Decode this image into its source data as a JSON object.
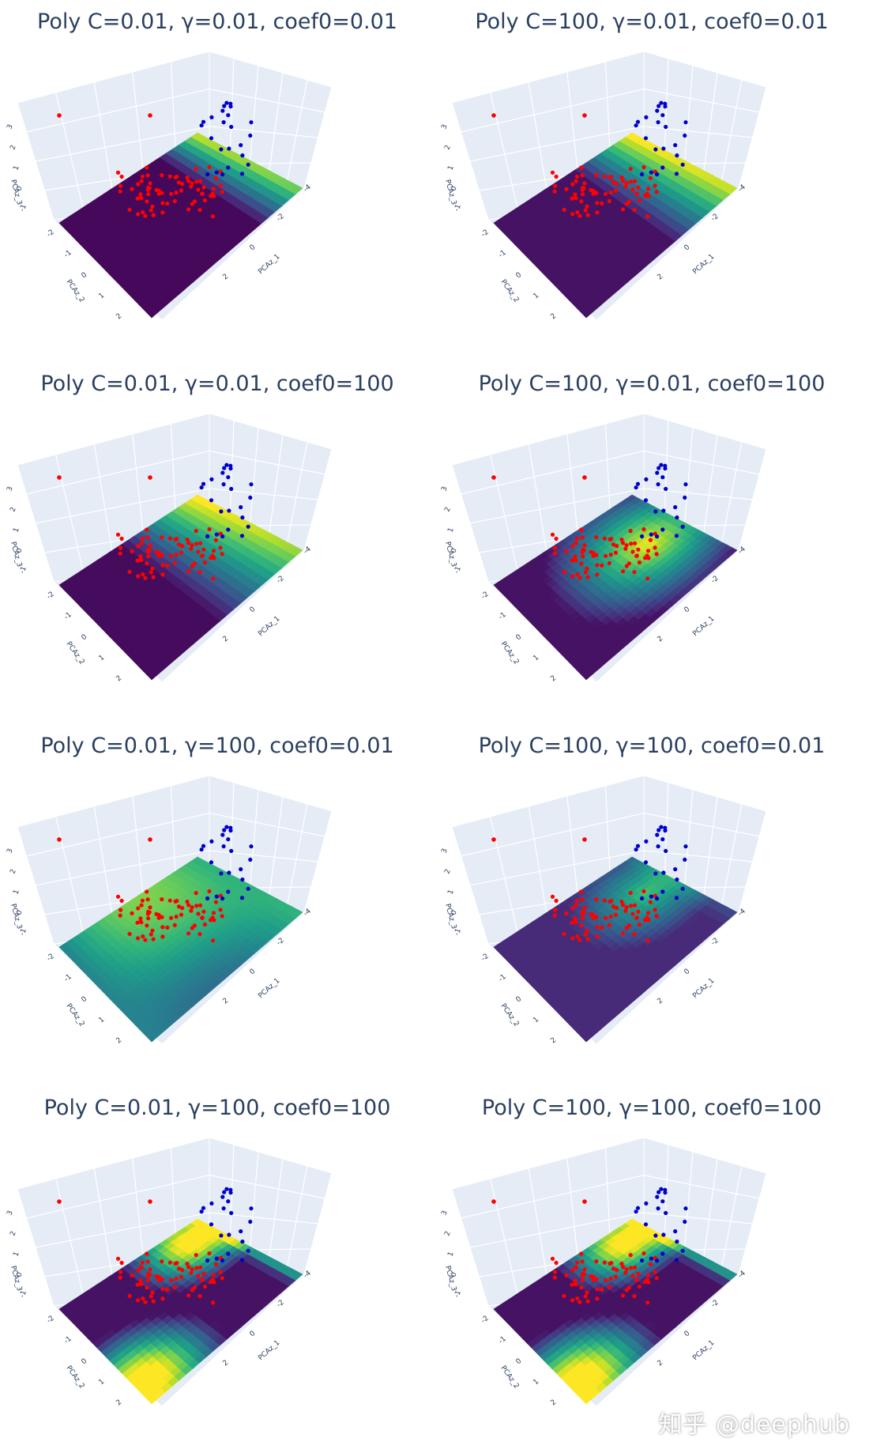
{
  "watermark": "知乎 @deephub",
  "colorscale": [
    "#440154",
    "#482878",
    "#3e4989",
    "#31688e",
    "#26828e",
    "#1f9e89",
    "#35b779",
    "#6ece58",
    "#b5de2b",
    "#fde725"
  ],
  "point_colors": {
    "class_red": "#ff0000",
    "class_blue": "#0000cc"
  },
  "axis_labels": {
    "x": "PCAz_1",
    "y": "PCAz_2",
    "z": "PCAz_3"
  },
  "chart_data": [
    {
      "type": "surface",
      "title": "Poly C=0.01, γ=0.01, coef0=0.01",
      "x_ticks": [
        "2",
        "0",
        "-2",
        "-4"
      ],
      "y_ticks": [
        "-2",
        "-1",
        "0",
        "1",
        "2"
      ],
      "z_ticks": [
        "-1",
        "0",
        "1",
        "2",
        "3"
      ]
    },
    {
      "type": "surface",
      "title": "Poly C=100, γ=0.01, coef0=0.01",
      "x_ticks": [
        "2",
        "0",
        "-2",
        "-4"
      ],
      "y_ticks": [
        "-2",
        "-1",
        "0",
        "1",
        "2"
      ],
      "z_ticks": [
        "-1",
        "0",
        "1",
        "2",
        "3"
      ]
    },
    {
      "type": "surface",
      "title": "Poly C=0.01, γ=0.01, coef0=100",
      "x_ticks": [
        "2",
        "0",
        "-2",
        "-4"
      ],
      "y_ticks": [
        "-2",
        "-1",
        "0",
        "1",
        "2"
      ],
      "z_ticks": [
        "-1",
        "0",
        "1",
        "2",
        "3"
      ]
    },
    {
      "type": "surface",
      "title": "Poly C=100, γ=0.01, coef0=100",
      "x_ticks": [
        "2",
        "0",
        "-2",
        "-4"
      ],
      "y_ticks": [
        "-2",
        "-1",
        "0",
        "1",
        "2"
      ],
      "z_ticks": [
        "-1",
        "0",
        "1",
        "2",
        "3"
      ]
    },
    {
      "type": "surface",
      "title": "Poly C=0.01, γ=100, coef0=0.01",
      "x_ticks": [
        "2",
        "0",
        "-2",
        "-4"
      ],
      "y_ticks": [
        "-2",
        "-1",
        "0",
        "1",
        "2"
      ],
      "z_ticks": [
        "-1",
        "0",
        "1",
        "2",
        "3"
      ]
    },
    {
      "type": "surface",
      "title": "Poly C=100, γ=100, coef0=0.01",
      "x_ticks": [
        "2",
        "0",
        "-2",
        "-4"
      ],
      "y_ticks": [
        "-2",
        "-1",
        "0",
        "1",
        "2"
      ],
      "z_ticks": [
        "-1",
        "0",
        "1",
        "2",
        "3"
      ]
    },
    {
      "type": "surface",
      "title": "Poly C=0.01, γ=100, coef0=100",
      "x_ticks": [
        "2",
        "0",
        "-2",
        "-4"
      ],
      "y_ticks": [
        "-2",
        "-1",
        "0",
        "1",
        "2"
      ],
      "z_ticks": [
        "-1",
        "0",
        "1",
        "2",
        "3"
      ]
    },
    {
      "type": "surface",
      "title": "Poly C=100, γ=100, coef0=100",
      "x_ticks": [
        "2",
        "0",
        "-2",
        "-4"
      ],
      "y_ticks": [
        "-2",
        "-1",
        "0",
        "1",
        "2"
      ],
      "z_ticks": [
        "-1",
        "0",
        "1",
        "2",
        "3"
      ]
    }
  ]
}
